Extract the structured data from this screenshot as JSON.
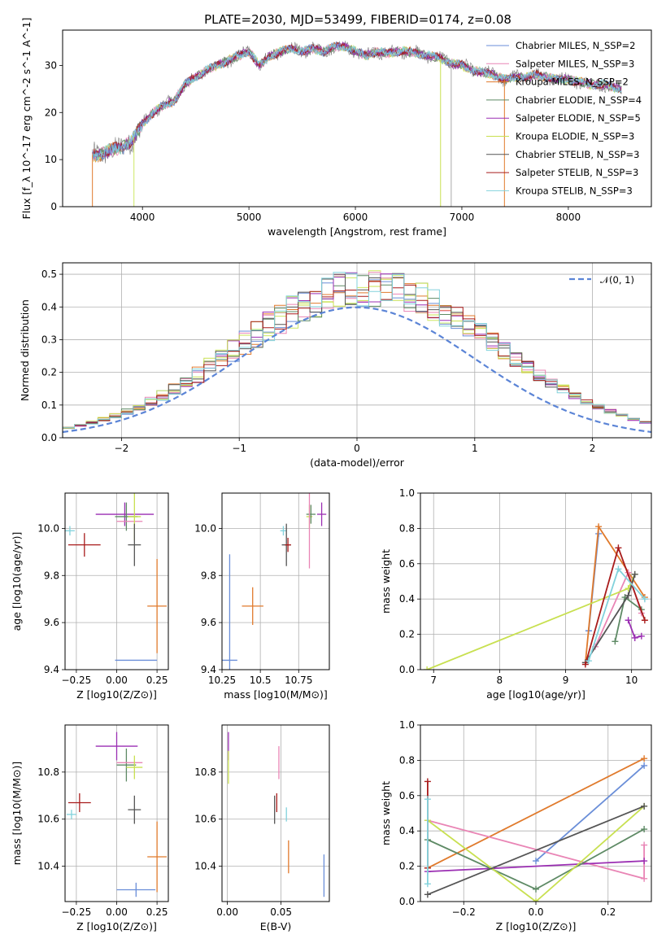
{
  "title": "PLATE=2030, MJD=53499, FIBERID=0174, z=0.08",
  "model_colors": [
    "#6a8ed8",
    "#e07a2c",
    "#cde864",
    "#e985b5",
    "#5e8a65",
    "#9b2fb3",
    "#c8e050",
    "#555555",
    "#a81b1b",
    "#82d2dc"
  ],
  "chart_data": [
    {
      "id": "spectrum",
      "type": "line",
      "xlabel": "wavelength [Angstrom, rest frame]",
      "ylabel": "Flux [f_λ 10^-17 erg cm^-2 s^-1 A^-1]",
      "xlim": [
        3250,
        8780
      ],
      "ylim": [
        0,
        37.5
      ],
      "xticks": [
        4000,
        5000,
        6000,
        7000,
        8000
      ],
      "yticks": [
        0,
        10,
        20,
        30
      ],
      "legend_position": "top-right",
      "legend": [
        {
          "name": "Chabrier MILES, N_SSP=2",
          "color": "#6a8ed8"
        },
        {
          "name": "Salpeter MILES, N_SSP=3",
          "color": "#e985b5"
        },
        {
          "name": "Kroupa MILES, N_SSP=2",
          "color": "#e07a2c"
        },
        {
          "name": "Chabrier ELODIE, N_SSP=4",
          "color": "#5e8a65"
        },
        {
          "name": "Salpeter ELODIE, N_SSP=5",
          "color": "#9b2fb3"
        },
        {
          "name": "Kroupa ELODIE, N_SSP=3",
          "color": "#c8e050"
        },
        {
          "name": "Chabrier STELIB, N_SSP=3",
          "color": "#555555"
        },
        {
          "name": "Salpeter STELIB, N_SSP=3",
          "color": "#a81b1b"
        },
        {
          "name": "Kroupa STELIB, N_SSP=3",
          "color": "#82d2dc"
        }
      ],
      "continuum": {
        "x": [
          3530,
          3600,
          3700,
          3800,
          3900,
          4000,
          4100,
          4200,
          4300,
          4400,
          4500,
          4600,
          4700,
          4800,
          4900,
          5000,
          5100,
          5200,
          5300,
          5400,
          5500,
          5600,
          5700,
          5800,
          5900,
          6000,
          6100,
          6200,
          6300,
          6400,
          6500,
          6600,
          6700,
          6800,
          6900,
          7000,
          7100,
          7200,
          7300,
          7400,
          7500,
          7600,
          7700,
          7800,
          7900,
          8000,
          8100,
          8200,
          8300,
          8400,
          8500
        ],
        "y": [
          11,
          11,
          12,
          12.5,
          14,
          17.5,
          20,
          21.5,
          22.5,
          26,
          27.5,
          29,
          30,
          31,
          32,
          33,
          30,
          32,
          33,
          33.5,
          33,
          33.5,
          33,
          34,
          34,
          33,
          32,
          33,
          32.5,
          33,
          33,
          32.5,
          32,
          31.5,
          30.5,
          30,
          29,
          28.5,
          28,
          27,
          27.5,
          27.5,
          28,
          27.5,
          27,
          27,
          26.5,
          26,
          26,
          25.5,
          25
        ]
      },
      "vertical_lines": [
        {
          "x": 3530,
          "color": "#e07a2c"
        },
        {
          "x": 3920,
          "color": "#cde864"
        },
        {
          "x": 6800,
          "color": "#c8e050"
        },
        {
          "x": 6900,
          "color": "#aaaaaa"
        },
        {
          "x": 7400,
          "color": "#e07a2c"
        }
      ]
    },
    {
      "id": "residuals",
      "type": "histogram",
      "xlabel": "(data-model)/error",
      "ylabel": "Normed distribution",
      "xlim": [
        -2.5,
        2.5
      ],
      "ylim": [
        0,
        0.535
      ],
      "xticks": [
        -2,
        -1,
        0,
        1,
        2
      ],
      "yticks": [
        0.0,
        0.1,
        0.2,
        0.3,
        0.4,
        0.5
      ],
      "grid": true,
      "legend_position": "top-right",
      "reference_curve": {
        "name": "𝒩(0, 1)",
        "color": "#5b84d6",
        "mean": 0,
        "sigma": 1
      },
      "bin_width": 0.1
    },
    {
      "id": "age_vs_Z",
      "type": "errorbar",
      "xlabel": "Z [log10(Z/Z⊙)]",
      "ylabel": "age [log10(age/yr)]",
      "xlim": [
        -0.32,
        0.32
      ],
      "ylim": [
        9.4,
        10.15
      ],
      "xticks": [
        -0.25,
        0.0,
        0.25
      ],
      "xtick_labels": [
        "−0.25",
        "0.00",
        "0.25"
      ],
      "yticks": [
        9.4,
        9.6,
        9.8,
        10.0
      ],
      "grid": true,
      "points": [
        {
          "x": 0.12,
          "y": 9.44,
          "xerr": 0.13,
          "yerr": 0.0,
          "color": "#6a8ed8"
        },
        {
          "x": 0.25,
          "y": 9.67,
          "xerr": 0.06,
          "yerr": 0.2,
          "color": "#e07a2c"
        },
        {
          "x": 0.05,
          "y": 10.06,
          "xerr": 0.18,
          "yerr": 0.05,
          "color": "#9b2fb3"
        },
        {
          "x": 0.06,
          "y": 10.05,
          "xerr": 0.07,
          "yerr": 0.06,
          "color": "#5e8a65"
        },
        {
          "x": 0.08,
          "y": 10.03,
          "xerr": 0.08,
          "yerr": 0.0,
          "color": "#e985b5"
        },
        {
          "x": 0.11,
          "y": 10.05,
          "xerr": 0.04,
          "yerr": 0.1,
          "color": "#c8e050"
        },
        {
          "x": 0.11,
          "y": 9.93,
          "xerr": 0.04,
          "yerr": 0.09,
          "color": "#555555"
        },
        {
          "x": -0.2,
          "y": 9.93,
          "xerr": 0.1,
          "yerr": 0.05,
          "color": "#a81b1b"
        },
        {
          "x": -0.29,
          "y": 9.99,
          "xerr": 0.03,
          "yerr": 0.02,
          "color": "#82d2dc"
        }
      ]
    },
    {
      "id": "age_vs_mass",
      "type": "errorbar",
      "xlabel": "mass [log10(M/M⊙)]",
      "xlim": [
        10.25,
        10.95
      ],
      "ylim": [
        9.4,
        10.15
      ],
      "xticks": [
        10.25,
        10.5,
        10.75
      ],
      "yticks": [
        9.4,
        9.6,
        9.8,
        10.0
      ],
      "grid": true,
      "points": [
        {
          "x": 10.3,
          "y": 9.44,
          "xerr": 0.05,
          "yerr": 0.45,
          "color": "#6a8ed8"
        },
        {
          "x": 10.45,
          "y": 9.67,
          "xerr": 0.07,
          "yerr": 0.08,
          "color": "#e07a2c"
        },
        {
          "x": 10.65,
          "y": 9.99,
          "xerr": 0.02,
          "yerr": 0.02,
          "color": "#82d2dc"
        },
        {
          "x": 10.67,
          "y": 9.93,
          "xerr": 0.03,
          "yerr": 0.09,
          "color": "#555555"
        },
        {
          "x": 10.68,
          "y": 9.93,
          "xerr": 0.02,
          "yerr": 0.03,
          "color": "#a81b1b"
        },
        {
          "x": 10.82,
          "y": 10.05,
          "xerr": 0.02,
          "yerr": 0.05,
          "color": "#c8e050"
        },
        {
          "x": 10.83,
          "y": 10.06,
          "xerr": 0.03,
          "yerr": 0.04,
          "color": "#5e8a65"
        },
        {
          "x": 10.82,
          "y": 10.03,
          "xerr": 0.0,
          "yerr": 0.2,
          "color": "#e985b5"
        },
        {
          "x": 10.9,
          "y": 10.06,
          "xerr": 0.03,
          "yerr": 0.05,
          "color": "#9b2fb3"
        }
      ]
    },
    {
      "id": "weight_vs_age",
      "type": "line",
      "xlabel": "age [log10(age/yr)]",
      "ylabel": "mass weight",
      "xlim": [
        6.8,
        10.3
      ],
      "ylim": [
        0,
        1.0
      ],
      "xticks": [
        7,
        8,
        9,
        10
      ],
      "yticks": [
        0.0,
        0.2,
        0.4,
        0.6,
        0.8,
        1.0
      ],
      "grid": true,
      "series": [
        {
          "color": "#6a8ed8",
          "x": [
            9.35,
            9.5
          ],
          "y": [
            0.22,
            0.77
          ]
        },
        {
          "color": "#e07a2c",
          "x": [
            9.3,
            9.5,
            10.2
          ],
          "y": [
            0.04,
            0.81,
            0.41
          ]
        },
        {
          "color": "#e985b5",
          "x": [
            9.45,
            9.95,
            10.15
          ],
          "y": [
            0.13,
            0.55,
            0.32
          ]
        },
        {
          "color": "#5e8a65",
          "x": [
            9.75,
            9.9,
            10.15
          ],
          "y": [
            0.16,
            0.41,
            0.34
          ]
        },
        {
          "color": "#9b2fb3",
          "x": [
            9.95,
            10.05,
            10.15
          ],
          "y": [
            0.28,
            0.18,
            0.19
          ]
        },
        {
          "color": "#c8e050",
          "x": [
            6.9,
            9.95,
            10.05
          ],
          "y": [
            0.0,
            0.46,
            0.54
          ]
        },
        {
          "color": "#555555",
          "x": [
            9.3,
            9.95,
            10.05
          ],
          "y": [
            0.04,
            0.42,
            0.54
          ]
        },
        {
          "color": "#a81b1b",
          "x": [
            9.3,
            9.8,
            10.2
          ],
          "y": [
            0.03,
            0.69,
            0.28
          ]
        },
        {
          "color": "#82d2dc",
          "x": [
            9.35,
            9.8,
            10.2
          ],
          "y": [
            0.05,
            0.57,
            0.4
          ]
        }
      ]
    },
    {
      "id": "mass_vs_Z",
      "type": "errorbar",
      "xlabel": "Z [log10(Z/Z⊙)]",
      "ylabel": "mass [log10(M/M⊙)]",
      "xlim": [
        -0.32,
        0.32
      ],
      "ylim": [
        10.25,
        11.0
      ],
      "xticks": [
        -0.25,
        0.0,
        0.25
      ],
      "xtick_labels": [
        "−0.25",
        "0.00",
        "0.25"
      ],
      "yticks": [
        10.4,
        10.6,
        10.8
      ],
      "grid": true,
      "points": [
        {
          "x": 0.12,
          "y": 10.3,
          "xerr": 0.12,
          "yerr": 0.03,
          "color": "#6a8ed8"
        },
        {
          "x": 0.25,
          "y": 10.44,
          "xerr": 0.06,
          "yerr": 0.15,
          "color": "#e07a2c"
        },
        {
          "x": 0.0,
          "y": 10.91,
          "xerr": 0.13,
          "yerr": 0.06,
          "color": "#9b2fb3"
        },
        {
          "x": 0.06,
          "y": 10.83,
          "xerr": 0.06,
          "yerr": 0.07,
          "color": "#5e8a65"
        },
        {
          "x": 0.08,
          "y": 10.84,
          "xerr": 0.08,
          "yerr": 0.0,
          "color": "#e985b5"
        },
        {
          "x": 0.11,
          "y": 10.82,
          "xerr": 0.05,
          "yerr": 0.05,
          "color": "#c8e050"
        },
        {
          "x": 0.11,
          "y": 10.64,
          "xerr": 0.04,
          "yerr": 0.06,
          "color": "#555555"
        },
        {
          "x": -0.23,
          "y": 10.67,
          "xerr": 0.07,
          "yerr": 0.04,
          "color": "#a81b1b"
        },
        {
          "x": -0.28,
          "y": 10.62,
          "xerr": 0.03,
          "yerr": 0.02,
          "color": "#82d2dc"
        }
      ]
    },
    {
      "id": "mass_vs_EBV",
      "type": "errorbar",
      "xlabel": "E(B-V)",
      "xlim": [
        -0.005,
        0.095
      ],
      "ylim": [
        10.25,
        11.0
      ],
      "xticks": [
        0.0,
        0.05
      ],
      "xtick_labels": [
        "0.00",
        "0.05"
      ],
      "yticks": [
        10.4,
        10.6,
        10.8
      ],
      "grid": true,
      "points": [
        {
          "x": 0.001,
          "y": 10.91,
          "xerr": 0,
          "yerr": 0.06,
          "color": "#9b2fb3"
        },
        {
          "x": 0.001,
          "y": 10.82,
          "xerr": 0,
          "yerr": 0.07,
          "color": "#c8e050"
        },
        {
          "x": 0.044,
          "y": 10.64,
          "xerr": 0,
          "yerr": 0.06,
          "color": "#555555"
        },
        {
          "x": 0.046,
          "y": 10.67,
          "xerr": 0,
          "yerr": 0.04,
          "color": "#a81b1b"
        },
        {
          "x": 0.048,
          "y": 10.84,
          "xerr": 0,
          "yerr": 0.07,
          "color": "#e985b5"
        },
        {
          "x": 0.055,
          "y": 10.62,
          "xerr": 0,
          "yerr": 0.03,
          "color": "#82d2dc"
        },
        {
          "x": 0.057,
          "y": 10.44,
          "xerr": 0,
          "yerr": 0.07,
          "color": "#e07a2c"
        },
        {
          "x": 0.09,
          "y": 10.36,
          "xerr": 0,
          "yerr": 0.09,
          "color": "#6a8ed8"
        }
      ]
    },
    {
      "id": "weight_vs_Z",
      "type": "line",
      "xlabel": "Z [log10(Z/Z⊙)]",
      "ylabel": "mass weight",
      "xlim": [
        -0.32,
        0.32
      ],
      "ylim": [
        0,
        1.0
      ],
      "xticks": [
        -0.2,
        0.0,
        0.2
      ],
      "xtick_labels": [
        "−0.2",
        "0.0",
        "0.2"
      ],
      "yticks": [
        0.0,
        0.2,
        0.4,
        0.6,
        0.8,
        1.0
      ],
      "grid": true,
      "series": [
        {
          "color": "#6a8ed8",
          "x": [
            0.0,
            0.3
          ],
          "y": [
            0.23,
            0.77
          ]
        },
        {
          "color": "#e07a2c",
          "x": [
            -0.3,
            0.3
          ],
          "y": [
            0.19,
            0.81
          ]
        },
        {
          "color": "#e985b5",
          "x": [
            -0.3,
            0.3,
            0.3
          ],
          "y": [
            0.46,
            0.13,
            0.32
          ]
        },
        {
          "color": "#9b2fb3",
          "x": [
            -0.3,
            0.3
          ],
          "y": [
            0.17,
            0.23
          ]
        },
        {
          "color": "#5e8a65",
          "x": [
            -0.3,
            0.0,
            0.3
          ],
          "y": [
            0.35,
            0.07,
            0.41
          ]
        },
        {
          "color": "#c8e050",
          "x": [
            -0.3,
            0.0,
            0.3
          ],
          "y": [
            0.46,
            0.0,
            0.54
          ]
        },
        {
          "color": "#555555",
          "x": [
            -0.3,
            0.3
          ],
          "y": [
            0.04,
            0.54
          ]
        },
        {
          "color": "#a81b1b",
          "x": [
            -0.3,
            -0.3
          ],
          "y": [
            0.19,
            0.68
          ]
        },
        {
          "color": "#82d2dc",
          "x": [
            -0.3,
            -0.3
          ],
          "y": [
            0.1,
            0.58
          ]
        }
      ]
    }
  ]
}
